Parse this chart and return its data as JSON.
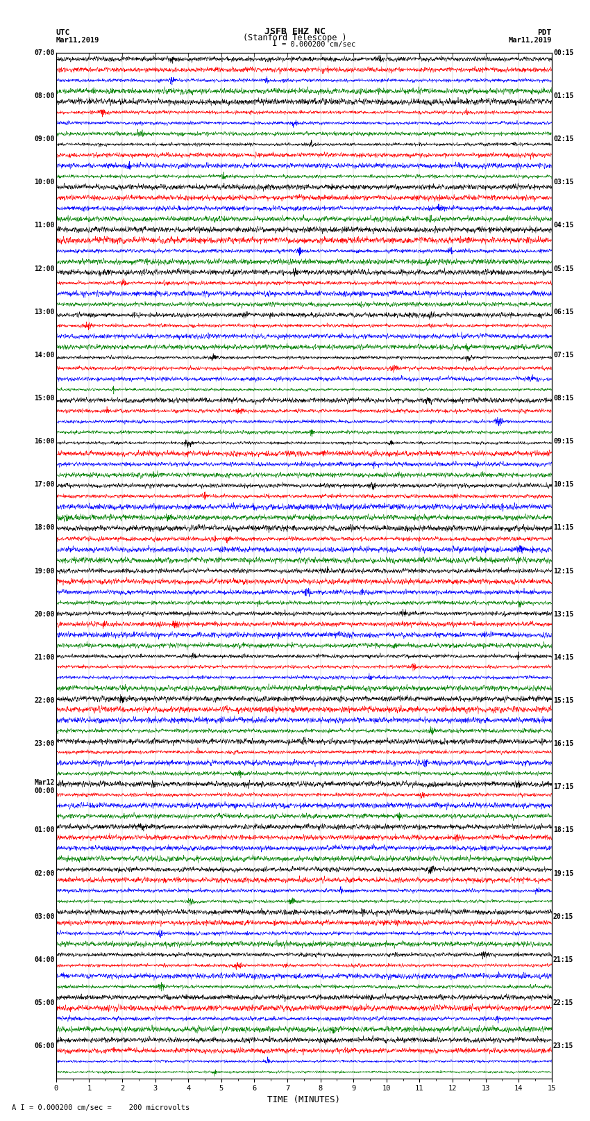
{
  "title_line1": "JSFB EHZ NC",
  "title_line2": "(Stanford Telescope )",
  "scale_label": "I = 0.000200 cm/sec",
  "left_header_1": "UTC",
  "left_header_2": "Mar11,2019",
  "right_header_1": "PDT",
  "right_header_2": "Mar11,2019",
  "bottom_label": "TIME (MINUTES)",
  "bottom_note": "A I = 0.000200 cm/sec =    200 microvolts",
  "utc_times": [
    "07:00",
    "08:00",
    "09:00",
    "10:00",
    "11:00",
    "12:00",
    "13:00",
    "14:00",
    "15:00",
    "16:00",
    "17:00",
    "18:00",
    "19:00",
    "20:00",
    "21:00",
    "22:00",
    "23:00",
    "Mar12\n00:00",
    "01:00",
    "02:00",
    "03:00",
    "04:00",
    "05:00",
    "06:00"
  ],
  "pdt_times": [
    "00:15",
    "01:15",
    "02:15",
    "03:15",
    "04:15",
    "05:15",
    "06:15",
    "07:15",
    "08:15",
    "09:15",
    "10:15",
    "11:15",
    "12:15",
    "13:15",
    "14:15",
    "15:15",
    "16:15",
    "17:15",
    "18:15",
    "19:15",
    "20:15",
    "21:15",
    "22:15",
    "23:15"
  ],
  "colors": [
    "black",
    "red",
    "blue",
    "green"
  ],
  "n_rows": 96,
  "n_points": 3000,
  "x_min": 0,
  "x_max": 15,
  "background_color": "white",
  "trace_lw": 0.35,
  "seed": 42,
  "rows_per_hour": 4,
  "n_hours": 24
}
